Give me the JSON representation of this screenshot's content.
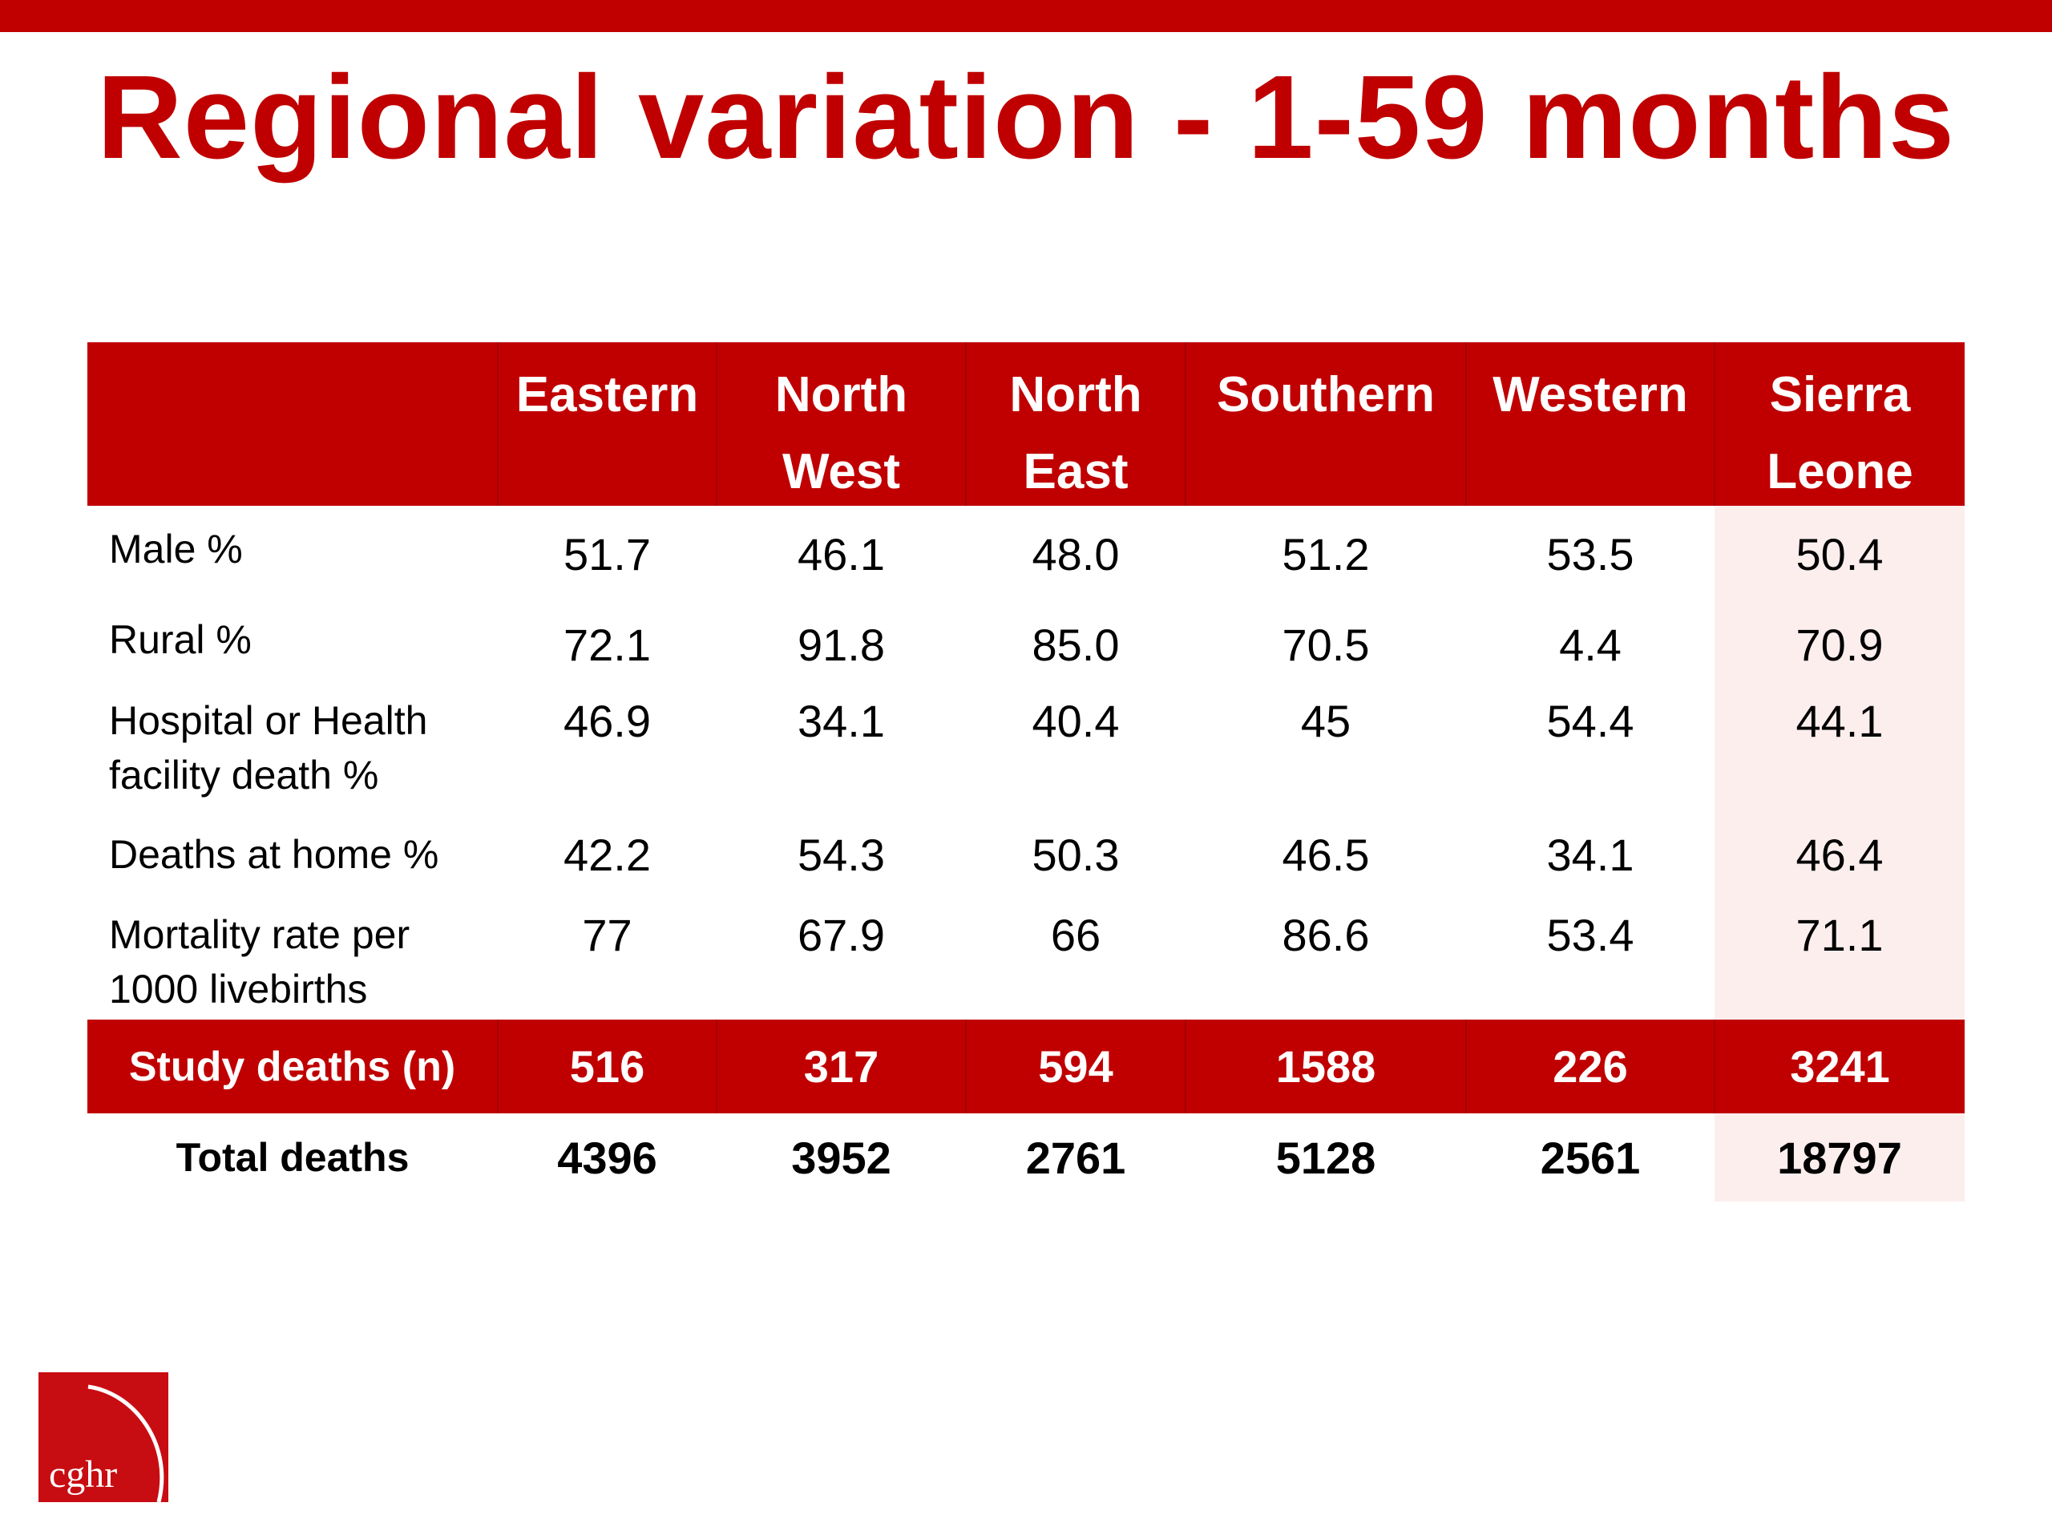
{
  "slide": {
    "title": "Regional variation - 1-59 months"
  },
  "table": {
    "columns": [
      {
        "line1": "Eastern",
        "line2": ""
      },
      {
        "line1": "North",
        "line2": "West"
      },
      {
        "line1": "North",
        "line2": "East"
      },
      {
        "line1": "Southern",
        "line2": ""
      },
      {
        "line1": "Western",
        "line2": ""
      },
      {
        "line1": "Sierra",
        "line2": "Leone"
      }
    ],
    "rows": [
      {
        "label_line1": "Male %",
        "label_line2": "",
        "values": [
          "51.7",
          "46.1",
          "48.0",
          "51.2",
          "53.5",
          "50.4"
        ]
      },
      {
        "label_line1": "Rural %",
        "label_line2": "",
        "values": [
          "72.1",
          "91.8",
          "85.0",
          "70.5",
          "4.4",
          "70.9"
        ]
      },
      {
        "label_line1": "Hospital or Health",
        "label_line2": "facility death %",
        "values": [
          "46.9",
          "34.1",
          "40.4",
          "45",
          "54.4",
          "44.1"
        ]
      },
      {
        "label_line1": "Deaths at home %",
        "label_line2": "",
        "values": [
          "42.2",
          "54.3",
          "50.3",
          "46.5",
          "34.1",
          "46.4"
        ]
      },
      {
        "label_line1": "Mortality rate per",
        "label_line2": "1000 livebirths",
        "values": [
          "77",
          "67.9",
          "66",
          "86.6",
          "53.4",
          "71.1"
        ]
      }
    ],
    "study_deaths": {
      "label": "Study deaths (n)",
      "values": [
        "516",
        "317",
        "594",
        "1588",
        "226",
        "3241"
      ]
    },
    "total_deaths": {
      "label": "Total deaths",
      "values": [
        "4396",
        "3952",
        "2761",
        "5128",
        "2561",
        "18797"
      ]
    }
  },
  "logo": {
    "text": "cghr"
  },
  "colors": {
    "brand_red": "#c00000",
    "highlight_column": "#fdeeee"
  }
}
